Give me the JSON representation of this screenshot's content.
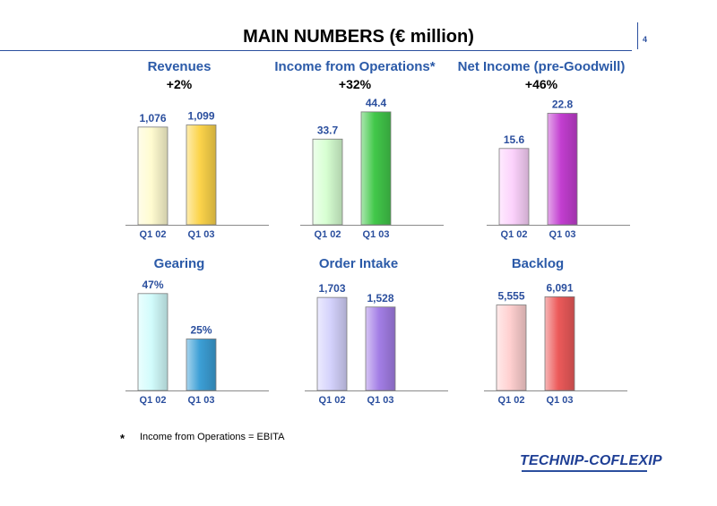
{
  "header": {
    "title": "MAIN NUMBERS (€ million)",
    "page_number": "4"
  },
  "chart_data": [
    {
      "type": "bar",
      "title": "Revenues",
      "change": "+2%",
      "categories": [
        "Q1 02",
        "Q1 03"
      ],
      "values": [
        1076,
        1099
      ],
      "value_labels": [
        "1,076",
        "1,099"
      ],
      "ylim": [
        0,
        1400
      ],
      "colors": [
        "#fffbd0",
        "#fcd44a"
      ]
    },
    {
      "type": "bar",
      "title": "Income from Operations*",
      "change": "+32%",
      "categories": [
        "Q1 02",
        "Q1 03"
      ],
      "values": [
        33.7,
        44.4
      ],
      "value_labels": [
        "33.7",
        "44.4"
      ],
      "ylim": [
        0,
        50
      ],
      "colors": [
        "#d7ffd2",
        "#42c84a"
      ]
    },
    {
      "type": "bar",
      "title": "Net Income (pre-Goodwill)",
      "change": "+46%",
      "categories": [
        "Q1 02",
        "Q1 03"
      ],
      "values": [
        15.6,
        22.8
      ],
      "value_labels": [
        "15.6",
        "22.8"
      ],
      "ylim": [
        0,
        26
      ],
      "colors": [
        "#fcd2fc",
        "#c23ed0"
      ]
    },
    {
      "type": "bar",
      "title": "Gearing",
      "change": "",
      "categories": [
        "Q1 02",
        "Q1 03"
      ],
      "values": [
        47,
        25
      ],
      "value_labels": [
        "47%",
        "25%"
      ],
      "ylim": [
        0,
        53
      ],
      "colors": [
        "#d2fcfc",
        "#3c9fd6"
      ]
    },
    {
      "type": "bar",
      "title": "Order Intake",
      "change": "",
      "categories": [
        "Q1 02",
        "Q1 03"
      ],
      "values": [
        1703,
        1528
      ],
      "value_labels": [
        "1,703",
        "1,528"
      ],
      "ylim": [
        0,
        2000
      ],
      "colors": [
        "#d4d2fc",
        "#a37ee6"
      ]
    },
    {
      "type": "bar",
      "title": "Backlog",
      "change": "",
      "categories": [
        "Q1 02",
        "Q1 03"
      ],
      "values": [
        5555,
        6091
      ],
      "value_labels": [
        "5,555",
        "6,091"
      ],
      "ylim": [
        0,
        7100
      ],
      "colors": [
        "#ffd0d0",
        "#ec5a5a"
      ]
    }
  ],
  "footnote": {
    "marker": "*",
    "text": "Income from Operations = EBITA"
  },
  "logo": {
    "text": "TECHNIP-COFLEXIP"
  }
}
